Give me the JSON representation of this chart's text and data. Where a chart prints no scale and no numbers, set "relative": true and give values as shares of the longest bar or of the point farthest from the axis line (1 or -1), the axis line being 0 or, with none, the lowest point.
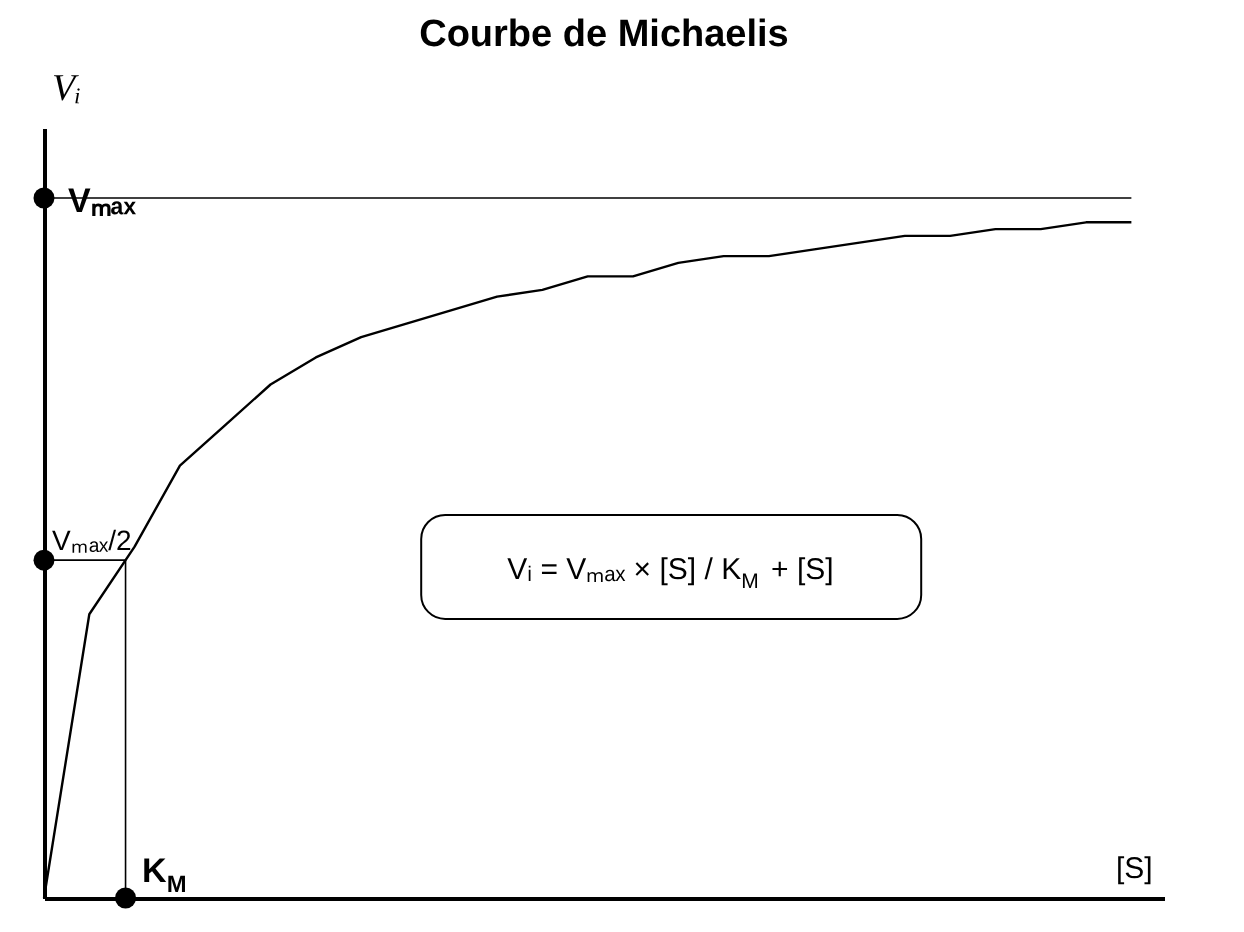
{
  "chart_data": {
    "type": "line",
    "title": "Courbe de Michaelis",
    "relative": true,
    "line_style": "solid",
    "categories": [
      null,
      null,
      null,
      null,
      null,
      null,
      null,
      null,
      null,
      null,
      null,
      null,
      null,
      null,
      null,
      null,
      null,
      null,
      null,
      null,
      null,
      null,
      null,
      null,
      null
    ],
    "series": [
      {
        "color": "#000000",
        "values": [
          0,
          0.42,
          0.52,
          0.64,
          0.7,
          0.76,
          0.8,
          0.83,
          0.85,
          0.87,
          0.89,
          0.9,
          0.92,
          0.92,
          0.94,
          0.95,
          0.95,
          0.96,
          0.97,
          0.98,
          0.98,
          0.99,
          0.99,
          1.0,
          1.0
        ]
      }
    ],
    "ref_lines": [
      {
        "axis": "y",
        "value": 1.036,
        "label": "Vₘₐₓ",
        "color": "#000000"
      },
      {
        "axis": "y",
        "value": 0.5,
        "label": "Vₘₐₓ/2",
        "color": "#000000"
      }
    ],
    "annotations": [
      "Vᵢ",
      "K$_{M}$",
      "[S]",
      "Vᵢ = Vₘₐₓ × [S] / K$_{M}$ + [S]"
    ]
  }
}
